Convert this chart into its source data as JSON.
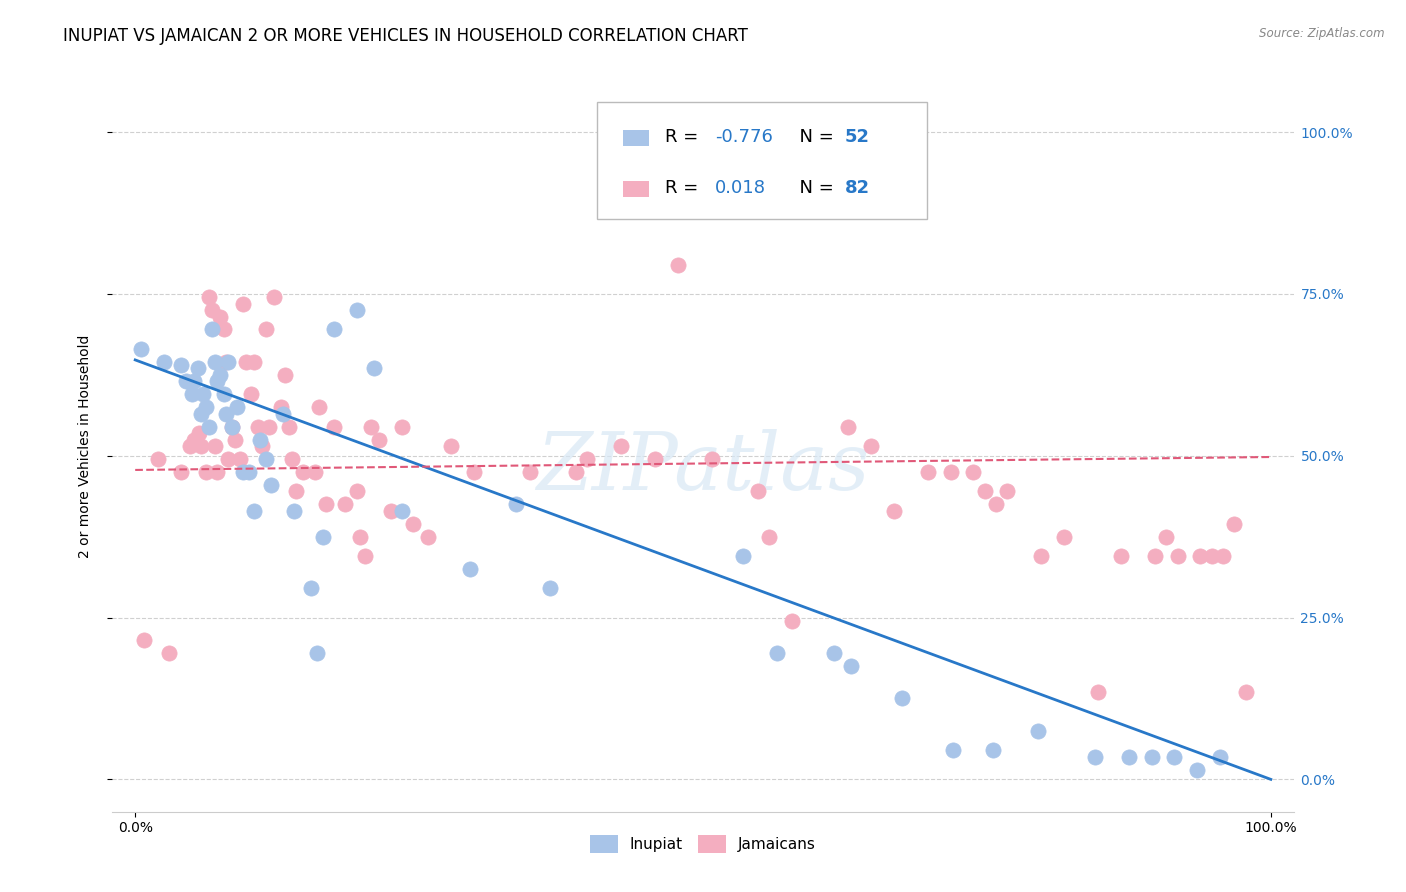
{
  "title": "INUPIAT VS JAMAICAN 2 OR MORE VEHICLES IN HOUSEHOLD CORRELATION CHART",
  "source": "Source: ZipAtlas.com",
  "ylabel": "2 or more Vehicles in Household",
  "xlabel": "",
  "xlim": [
    -0.02,
    1.02
  ],
  "ylim": [
    -0.05,
    1.08
  ],
  "xtick_positions": [
    0.0,
    1.0
  ],
  "xtick_labels": [
    "0.0%",
    "100.0%"
  ],
  "ytick_positions": [
    0.0,
    0.25,
    0.5,
    0.75,
    1.0
  ],
  "ytick_labels": [
    "0.0%",
    "25.0%",
    "50.0%",
    "75.0%",
    "100.0%"
  ],
  "watermark": "ZIPatlas",
  "legend_r_inupiat": "-0.776",
  "legend_n_inupiat": "52",
  "legend_r_jamaican": "0.018",
  "legend_n_jamaican": "82",
  "inupiat_color": "#a8c4e8",
  "jamaican_color": "#f4aec0",
  "line_inupiat_color": "#2878c8",
  "line_jamaican_color": "#e05878",
  "inupiat_x": [
    0.005,
    0.025,
    0.04,
    0.045,
    0.05,
    0.052,
    0.055,
    0.058,
    0.06,
    0.062,
    0.065,
    0.068,
    0.07,
    0.072,
    0.075,
    0.078,
    0.08,
    0.082,
    0.085,
    0.09,
    0.095,
    0.1,
    0.105,
    0.11,
    0.115,
    0.12,
    0.13,
    0.14,
    0.155,
    0.16,
    0.165,
    0.175,
    0.195,
    0.21,
    0.235,
    0.295,
    0.335,
    0.365,
    0.535,
    0.565,
    0.615,
    0.63,
    0.675,
    0.72,
    0.755,
    0.795,
    0.845,
    0.875,
    0.895,
    0.915,
    0.935,
    0.955
  ],
  "inupiat_y": [
    0.665,
    0.645,
    0.64,
    0.615,
    0.595,
    0.615,
    0.635,
    0.565,
    0.595,
    0.575,
    0.545,
    0.695,
    0.645,
    0.615,
    0.625,
    0.595,
    0.565,
    0.645,
    0.545,
    0.575,
    0.475,
    0.475,
    0.415,
    0.525,
    0.495,
    0.455,
    0.565,
    0.415,
    0.295,
    0.195,
    0.375,
    0.695,
    0.725,
    0.635,
    0.415,
    0.325,
    0.425,
    0.295,
    0.345,
    0.195,
    0.195,
    0.175,
    0.125,
    0.045,
    0.045,
    0.075,
    0.035,
    0.035,
    0.035,
    0.035,
    0.015,
    0.035
  ],
  "jamaican_x": [
    0.008,
    0.02,
    0.03,
    0.04,
    0.048,
    0.052,
    0.056,
    0.058,
    0.062,
    0.065,
    0.068,
    0.07,
    0.072,
    0.075,
    0.078,
    0.08,
    0.082,
    0.085,
    0.088,
    0.092,
    0.095,
    0.098,
    0.102,
    0.105,
    0.108,
    0.112,
    0.115,
    0.118,
    0.122,
    0.128,
    0.132,
    0.135,
    0.138,
    0.142,
    0.148,
    0.158,
    0.162,
    0.168,
    0.175,
    0.185,
    0.195,
    0.198,
    0.202,
    0.208,
    0.215,
    0.225,
    0.235,
    0.245,
    0.258,
    0.278,
    0.298,
    0.348,
    0.388,
    0.398,
    0.428,
    0.458,
    0.478,
    0.508,
    0.548,
    0.558,
    0.578,
    0.628,
    0.648,
    0.668,
    0.698,
    0.718,
    0.738,
    0.748,
    0.758,
    0.768,
    0.798,
    0.818,
    0.848,
    0.868,
    0.898,
    0.908,
    0.918,
    0.938,
    0.948,
    0.958,
    0.968,
    0.978
  ],
  "jamaican_y": [
    0.215,
    0.495,
    0.195,
    0.475,
    0.515,
    0.525,
    0.535,
    0.515,
    0.475,
    0.745,
    0.725,
    0.515,
    0.475,
    0.715,
    0.695,
    0.645,
    0.495,
    0.545,
    0.525,
    0.495,
    0.735,
    0.645,
    0.595,
    0.645,
    0.545,
    0.515,
    0.695,
    0.545,
    0.745,
    0.575,
    0.625,
    0.545,
    0.495,
    0.445,
    0.475,
    0.475,
    0.575,
    0.425,
    0.545,
    0.425,
    0.445,
    0.375,
    0.345,
    0.545,
    0.525,
    0.415,
    0.545,
    0.395,
    0.375,
    0.515,
    0.475,
    0.475,
    0.475,
    0.495,
    0.515,
    0.495,
    0.795,
    0.495,
    0.445,
    0.375,
    0.245,
    0.545,
    0.515,
    0.415,
    0.475,
    0.475,
    0.475,
    0.445,
    0.425,
    0.445,
    0.345,
    0.375,
    0.135,
    0.345,
    0.345,
    0.375,
    0.345,
    0.345,
    0.345,
    0.345,
    0.395,
    0.135
  ],
  "background_color": "#ffffff",
  "grid_color": "#d0d0d0",
  "title_fontsize": 12,
  "axis_label_fontsize": 10,
  "tick_fontsize": 10,
  "legend_fontsize": 13,
  "inupiat_line_start_y": 0.648,
  "inupiat_line_end_y": 0.0,
  "jamaican_line_start_y": 0.478,
  "jamaican_line_end_y": 0.498
}
